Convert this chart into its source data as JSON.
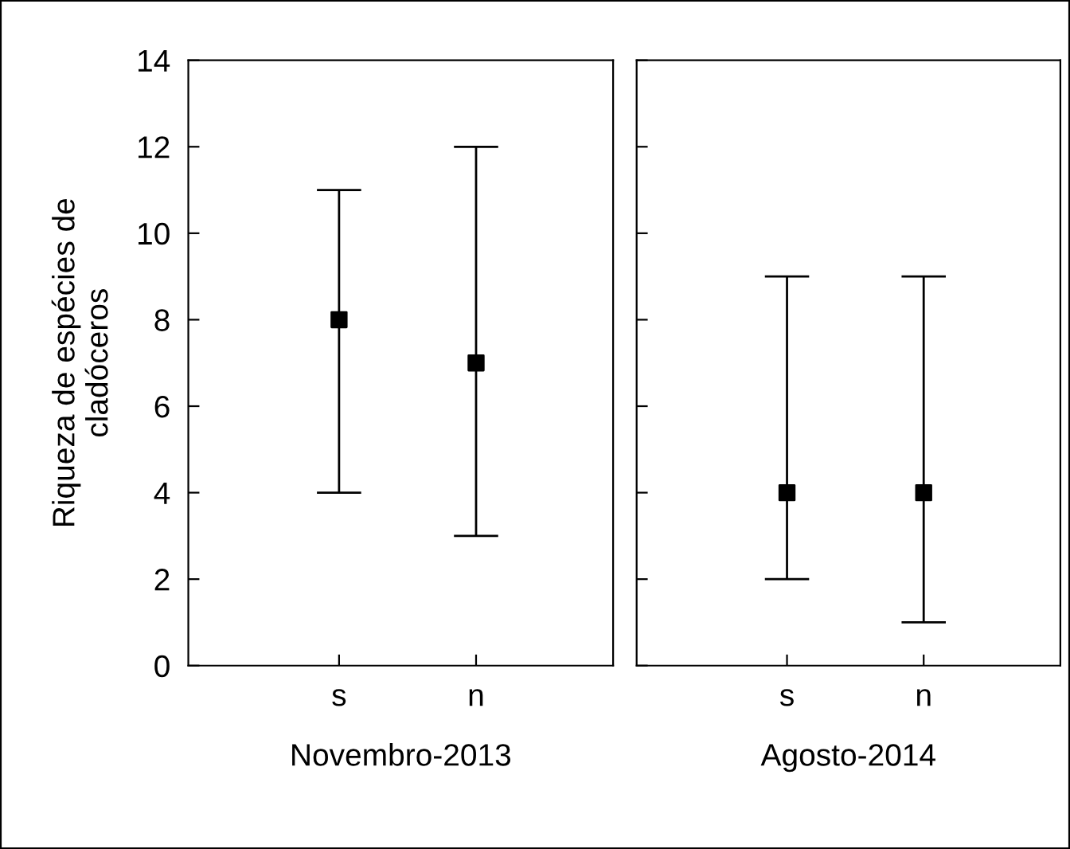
{
  "chart_data": [
    {
      "type": "scatter",
      "ylabel": "Riqueza de espécies de\ncladóceros",
      "xlabel": "Novembro-2013",
      "categories": [
        "s",
        "n"
      ],
      "series": [
        {
          "color": "#000000",
          "values": [
            8,
            7
          ],
          "errors": [
            [
              4,
              11
            ],
            [
              3,
              12
            ]
          ]
        }
      ],
      "ylim": [
        0,
        14
      ],
      "yticks": [
        0,
        2,
        4,
        6,
        8,
        10,
        12,
        14
      ],
      "marker": "square",
      "grid": false,
      "legend": false
    },
    {
      "type": "scatter",
      "xlabel": "Agosto-2014",
      "categories": [
        "s",
        "n"
      ],
      "series": [
        {
          "color": "#000000",
          "values": [
            4,
            4
          ],
          "errors": [
            [
              2,
              9
            ],
            [
              1,
              9
            ]
          ]
        }
      ],
      "ylim": [
        0,
        14
      ],
      "yticks": [
        0,
        2,
        4,
        6,
        8,
        10,
        12,
        14
      ],
      "tick_labels": "x",
      "marker": "square",
      "grid": false,
      "legend": false
    }
  ]
}
